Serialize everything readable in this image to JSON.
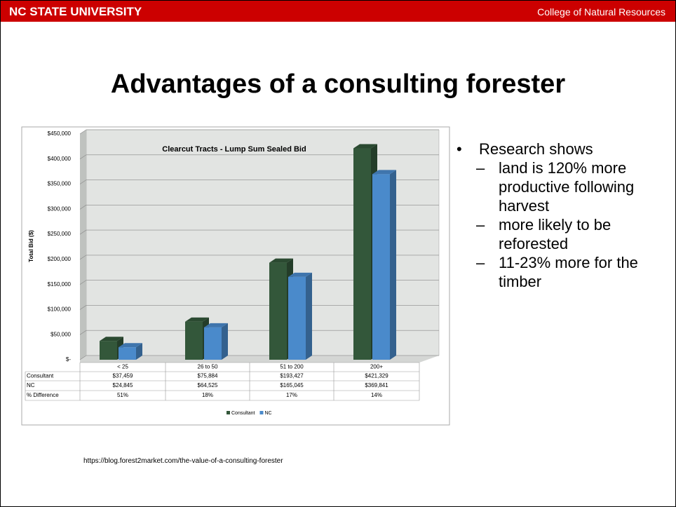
{
  "header": {
    "left": "NC STATE UNIVERSITY",
    "right": "College of Natural Resources"
  },
  "title": "Advantages of a consulting forester",
  "bullets": [
    {
      "text": "Research shows",
      "items": [
        "land is 120% more productive following harvest",
        "more likely to be reforested",
        "11-23% more for the timber"
      ]
    }
  ],
  "source": "https://blog.forest2market.com/the-value-of-a-consulting-forester",
  "chart_data": {
    "type": "bar",
    "title": "Clearcut Tracts - Lump Sum Sealed Bid",
    "y_label": "Total Bid ($)",
    "categories": [
      "< 25",
      "26 to 50",
      "51 to 200",
      "200+"
    ],
    "series": [
      {
        "name": "Consultant",
        "color": "#33573a",
        "values": [
          37459,
          75884,
          193427,
          421329
        ],
        "value_labels": [
          "$37,459",
          "$75,884",
          "$193,427",
          "$421,329"
        ]
      },
      {
        "name": "NC",
        "color": "#4a8acb",
        "values": [
          24845,
          64525,
          165045,
          369841
        ],
        "value_labels": [
          "$24,845",
          "$64,525",
          "$165,045",
          "$369,841"
        ]
      }
    ],
    "difference": {
      "name": "% Difference",
      "values": [
        51,
        18,
        17,
        14
      ],
      "value_labels": [
        "51%",
        "18%",
        "17%",
        "14%"
      ]
    },
    "ylim": [
      0,
      450000
    ],
    "yticks": [
      {
        "value": 0,
        "label": "$-"
      },
      {
        "value": 50000,
        "label": "$50,000"
      },
      {
        "value": 100000,
        "label": "$100,000"
      },
      {
        "value": 150000,
        "label": "$150,000"
      },
      {
        "value": 200000,
        "label": "$200,000"
      },
      {
        "value": 250000,
        "label": "$250,000"
      },
      {
        "value": 300000,
        "label": "$300,000"
      },
      {
        "value": 350000,
        "label": "$350,000"
      },
      {
        "value": 400000,
        "label": "$400,000"
      },
      {
        "value": 450000,
        "label": "$450,000"
      }
    ],
    "grid": true
  }
}
